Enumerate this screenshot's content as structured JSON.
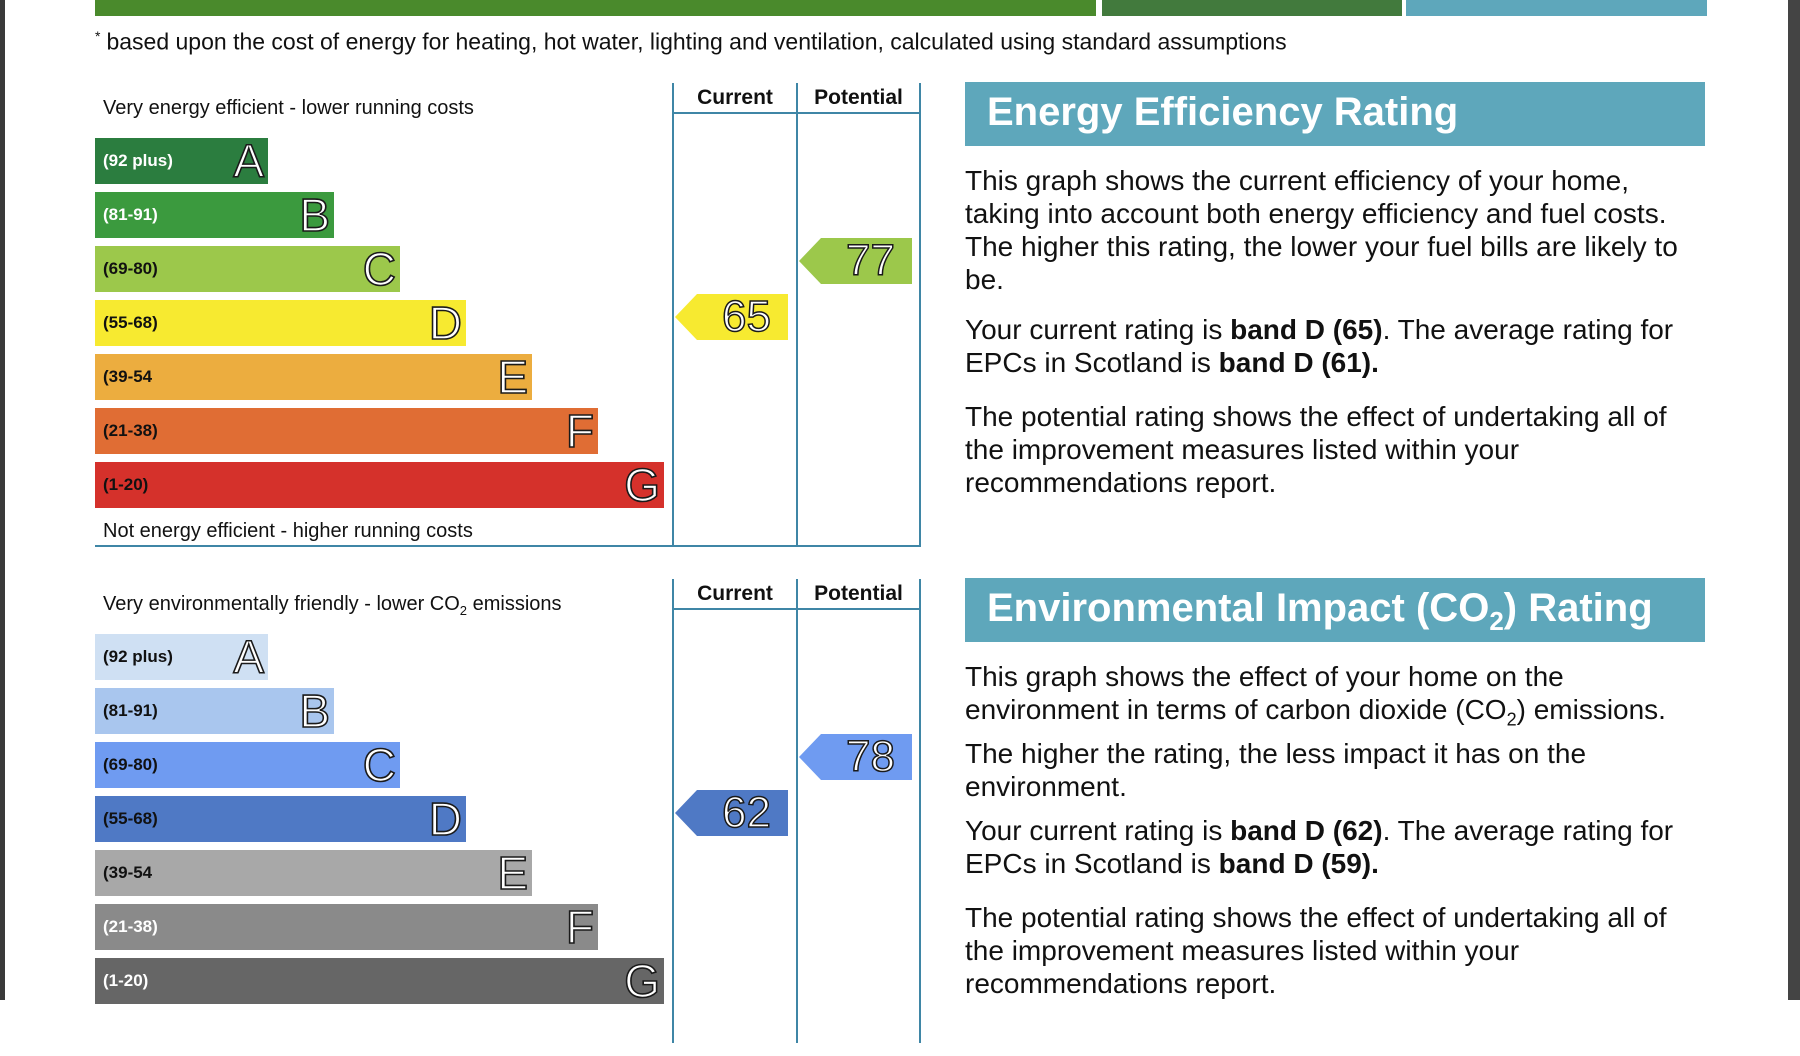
{
  "top_bar_colors": [
    "#4a8a2c",
    "#427a3d",
    "#5ea7bb"
  ],
  "footnote": {
    "mark": "*",
    "text": "based upon the cost of energy for heating, hot water, lighting and ventilation, calculated using standard assumptions"
  },
  "energy": {
    "top_label": "Very energy efficient - lower running costs",
    "bottom_label": "Not energy efficient - higher running costs",
    "col_current": "Current",
    "col_potential": "Potential",
    "bands": [
      {
        "range": "(92 plus)",
        "letter": "A",
        "color": "#2b7d3f",
        "range_color": "#ffffff"
      },
      {
        "range": "(81-91)",
        "letter": "B",
        "color": "#3b9a3e",
        "range_color": "#ffffff"
      },
      {
        "range": "(69-80)",
        "letter": "C",
        "color": "#9cc84b",
        "range_color": "#111111"
      },
      {
        "range": "(55-68)",
        "letter": "D",
        "color": "#f7ea30",
        "range_color": "#111111"
      },
      {
        "range": "(39-54",
        "letter": "E",
        "color": "#ecad3f",
        "range_color": "#111111"
      },
      {
        "range": "(21-38)",
        "letter": "F",
        "color": "#e06d34",
        "range_color": "#111111"
      },
      {
        "range": "(1-20)",
        "letter": "G",
        "color": "#d5312b",
        "range_color": "#111111"
      }
    ],
    "current": {
      "value": "65",
      "band_index": 3,
      "color": "#f7ea30"
    },
    "potential": {
      "value": "77",
      "band_index": 2,
      "color": "#9cc84b"
    },
    "title": "Energy Efficiency Rating",
    "para1": "This graph shows the current efficiency of your home, taking into account both energy efficiency and fuel costs. The higher this rating, the lower your fuel bills are likely to be.",
    "para2": {
      "a": "Your current rating is ",
      "b": "band D (65)",
      "c": ". The average rating for EPCs in Scotland is ",
      "d": "band D (61)."
    },
    "para3": "The potential rating shows the effect of undertaking all of the improvement measures listed within your recommendations report."
  },
  "environment": {
    "top_label": {
      "a": "Very environmentally friendly - lower CO",
      "sub": "2",
      "b": " emissions"
    },
    "col_current": "Current",
    "col_potential": "Potential",
    "bands": [
      {
        "range": "(92 plus)",
        "letter": "A",
        "color": "#cfe0f3",
        "range_color": "#111111"
      },
      {
        "range": "(81-91)",
        "letter": "B",
        "color": "#a9c6ee",
        "range_color": "#111111"
      },
      {
        "range": "(69-80)",
        "letter": "C",
        "color": "#6f9bf1",
        "range_color": "#111111"
      },
      {
        "range": "(55-68)",
        "letter": "D",
        "color": "#4f79c5",
        "range_color": "#111111"
      },
      {
        "range": "(39-54",
        "letter": "E",
        "color": "#a8a8a8",
        "range_color": "#111111"
      },
      {
        "range": "(21-38)",
        "letter": "F",
        "color": "#8a8a8a",
        "range_color": "#ffffff"
      },
      {
        "range": "(1-20)",
        "letter": "G",
        "color": "#666666",
        "range_color": "#ffffff"
      }
    ],
    "current": {
      "value": "62",
      "band_index": 3,
      "color": "#4f79c5"
    },
    "potential": {
      "value": "78",
      "band_index": 2,
      "color": "#6f9bf1"
    },
    "title": {
      "a": "Environmental Impact (CO",
      "sub": "2",
      "b": ") Rating"
    },
    "para1": {
      "a": "This graph shows the effect of your home on the environment in terms of carbon dioxide (CO",
      "sub": "2",
      "b": ") emissions. The higher the rating, the less impact it has on the environment."
    },
    "para2": {
      "a": "Your current rating is ",
      "b": "band D (62)",
      "c": ". The average rating for EPCs in Scotland is ",
      "d": "band D (59)."
    },
    "para3": "The potential rating shows the effect of undertaking all of the improvement measures listed within your recommendations report."
  }
}
